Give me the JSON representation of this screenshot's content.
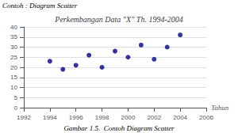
{
  "chart_data": {
    "type": "scatter",
    "title": "Perkembangan Data \"X\" Th. 1994-2004",
    "x_label": "Tahun",
    "annotations": [
      "Contoh : Diagram Scatter",
      "Gambar 1.5.  Contoh Diagram Scatter"
    ],
    "x": [
      1994,
      1995,
      1996,
      1997,
      1998,
      1999,
      2000,
      2001,
      2002,
      2003,
      2004
    ],
    "values": [
      23,
      19,
      21,
      26,
      20,
      28,
      25,
      31,
      24,
      30,
      36
    ],
    "color": "#00008B",
    "xlim": [
      1992,
      2006
    ],
    "xticks": [
      1992,
      1994,
      1996,
      1998,
      2000,
      2002,
      2004,
      2006
    ],
    "ylim": [
      0,
      40
    ],
    "yticks": [
      0,
      5,
      10,
      15,
      20,
      25,
      30,
      35,
      40
    ],
    "grid": true
  }
}
